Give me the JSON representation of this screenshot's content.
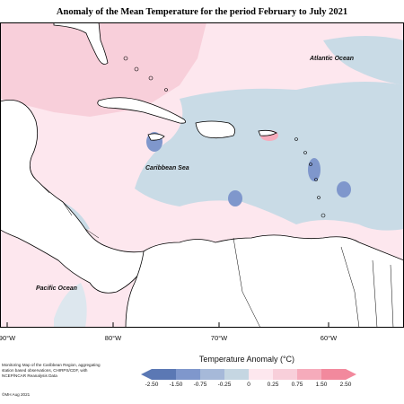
{
  "title": "Anomaly of the Mean Temperature for the period February to July 2021",
  "labels": {
    "atlantic": "Atlantic Ocean",
    "caribbean": "Caribbean Sea",
    "pacific": "Pacific Ocean"
  },
  "longitudes": [
    "90°W",
    "80°W",
    "70°W",
    "60°W"
  ],
  "legend": {
    "title": "Temperature Anomaly (°C)",
    "ticks": [
      "-2.50",
      "-1.50",
      "-0.75",
      "-0.25",
      "0",
      "0.25",
      "0.75",
      "1.50",
      "2.50"
    ],
    "colors": [
      "#5b78b4",
      "#7f97cc",
      "#a6b9d9",
      "#c5d6e2",
      "#dde7ee",
      "#fde7ee",
      "#f8cfda",
      "#f6abbb",
      "#f2899d"
    ]
  },
  "note": "Monitoring Map of the Caribbean Region, aggregating station based observations, CHIRPS/CDF, with NCEP/NCAR Reanalysis Data",
  "copyright": "©MH Aug 2021"
}
